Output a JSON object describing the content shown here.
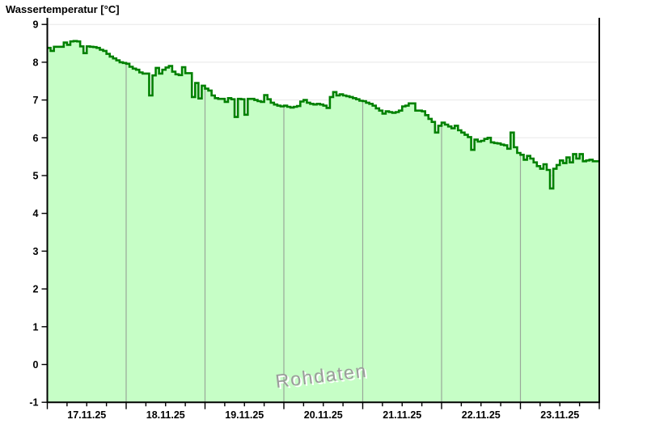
{
  "header": {
    "title": "Wassertemperatur [°C]"
  },
  "watermark": {
    "text": "Rohdaten"
  },
  "colors": {
    "background": "#ffffff",
    "area_fill": "#c6fec6",
    "line": "#008000",
    "grid_horizontal": "#e8e8e8",
    "grid_vertical_day": "#8a8a8a",
    "axis": "#000000",
    "tick_label": "#000000",
    "watermark_fill": "#9c9c9c",
    "watermark_shadow": "#ffffff"
  },
  "chart_data": {
    "type": "area",
    "title": "Wassertemperatur [°C]",
    "xlabel": "",
    "ylabel": "Wassertemperatur [°C]",
    "ylim": [
      -1,
      9
    ],
    "y_ticks": [
      -1,
      0,
      1,
      2,
      3,
      4,
      5,
      6,
      7,
      8,
      9
    ],
    "grid": "horizontal lines at integer values; vertical gray lines at day boundaries inside the filled area",
    "legend_position": "none",
    "watermark": "Rohdaten",
    "x_day_labels": [
      "17.11.25",
      "18.11.25",
      "19.11.25",
      "20.11.25",
      "21.11.25",
      "22.11.25",
      "23.11.25"
    ],
    "x_minor_ticks_per_day": 4,
    "sample_interval_hours": 1,
    "series": [
      {
        "name": "Wassertemperatur",
        "unit": "°C",
        "values": [
          8.38,
          8.3,
          8.41,
          8.41,
          8.41,
          8.52,
          8.46,
          8.55,
          8.56,
          8.55,
          8.42,
          8.24,
          8.42,
          8.41,
          8.4,
          8.38,
          8.33,
          8.3,
          8.22,
          8.15,
          8.1,
          8.05,
          8.0,
          7.98,
          7.96,
          7.88,
          7.83,
          7.8,
          7.73,
          7.7,
          7.7,
          7.12,
          7.65,
          7.85,
          7.7,
          7.8,
          7.86,
          7.9,
          7.75,
          7.68,
          7.66,
          7.87,
          7.71,
          7.71,
          7.08,
          7.45,
          7.04,
          7.38,
          7.3,
          7.25,
          7.12,
          7.05,
          7.03,
          7.03,
          6.95,
          7.05,
          7.02,
          6.55,
          7.03,
          7.02,
          6.61,
          7.03,
          7.03,
          7.0,
          6.97,
          6.95,
          7.13,
          7.02,
          6.93,
          6.88,
          6.85,
          6.83,
          6.85,
          6.82,
          6.8,
          6.82,
          6.84,
          6.96,
          7.0,
          6.93,
          6.9,
          6.88,
          6.9,
          6.88,
          6.85,
          6.79,
          7.08,
          7.21,
          7.12,
          7.15,
          7.12,
          7.1,
          7.08,
          7.05,
          7.02,
          6.98,
          6.97,
          6.93,
          6.9,
          6.85,
          6.78,
          6.72,
          6.64,
          6.7,
          6.68,
          6.66,
          6.68,
          6.72,
          6.83,
          6.85,
          6.91,
          6.91,
          6.72,
          6.72,
          6.7,
          6.6,
          6.5,
          6.42,
          6.14,
          6.32,
          6.4,
          6.35,
          6.3,
          6.25,
          6.32,
          6.2,
          6.14,
          6.08,
          6.02,
          5.68,
          5.95,
          5.9,
          5.92,
          5.97,
          6.0,
          5.88,
          5.86,
          5.85,
          5.82,
          5.8,
          5.71,
          6.14,
          5.75,
          5.6,
          5.55,
          5.42,
          5.52,
          5.45,
          5.35,
          5.25,
          5.18,
          5.3,
          5.15,
          4.66,
          5.18,
          5.28,
          5.4,
          5.33,
          5.48,
          5.35,
          5.57,
          5.45,
          5.57,
          5.38,
          5.4,
          5.42,
          5.38,
          5.38
        ]
      }
    ]
  }
}
